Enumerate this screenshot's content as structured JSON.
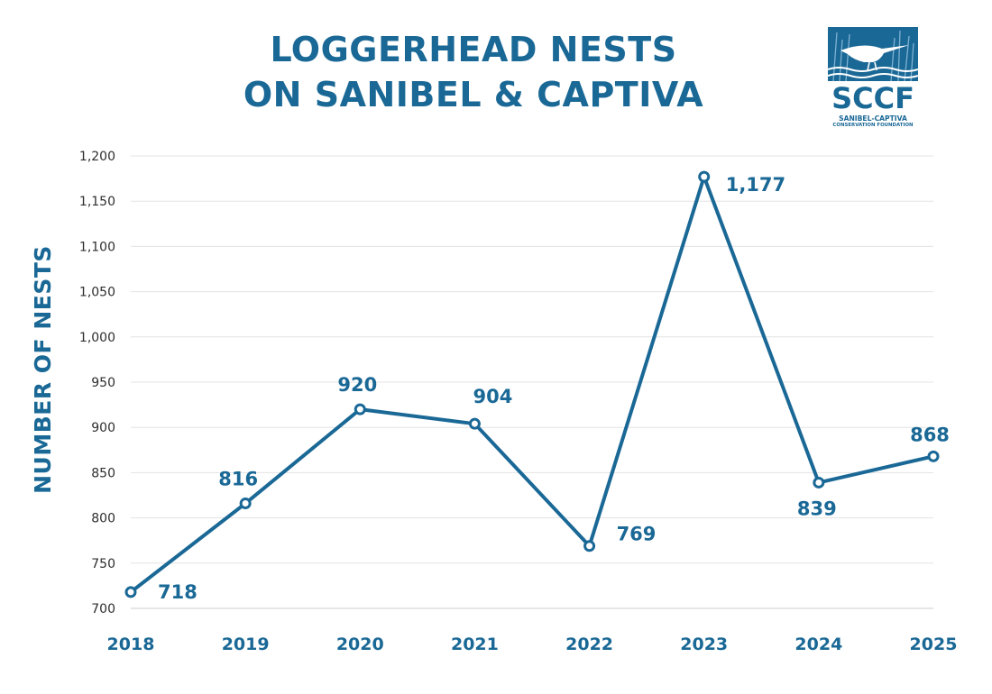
{
  "header": {
    "title_line1": "LOGGERHEAD NESTS",
    "title_line2": "ON SANIBEL & CAPTIVA"
  },
  "logo": {
    "name": "SCCF",
    "subtitle_line1": "SANIBEL-CAPTIVA",
    "subtitle_line2": "CONSERVATION FOUNDATION",
    "icon": "shorebird-marsh-icon"
  },
  "colors": {
    "primary": "#1a6896",
    "grid": "#e3e3e3",
    "tick_text": "#2e2e2e"
  },
  "chart_data": {
    "type": "line",
    "title": "LOGGERHEAD NESTS ON SANIBEL & CAPTIVA",
    "xlabel": "",
    "ylabel": "NUMBER OF NESTS",
    "x": [
      "2018",
      "2019",
      "2020",
      "2021",
      "2022",
      "2023",
      "2024",
      "2025"
    ],
    "series": [
      {
        "values": [
          718,
          816,
          920,
          904,
          769,
          1177,
          839,
          868
        ],
        "labels": [
          "718",
          "816",
          "920",
          "904",
          "769",
          "1,177",
          "839",
          "868"
        ]
      }
    ],
    "ylim": [
      700,
      1200
    ],
    "yticks": [
      700,
      750,
      800,
      850,
      900,
      950,
      1000,
      1050,
      1100,
      1150,
      1200
    ],
    "ytick_labels": [
      "700",
      "750",
      "800",
      "850",
      "900",
      "950",
      "1,000",
      "1,050",
      "1,100",
      "1,150",
      "1,200"
    ],
    "grid": true,
    "legend": "none"
  }
}
